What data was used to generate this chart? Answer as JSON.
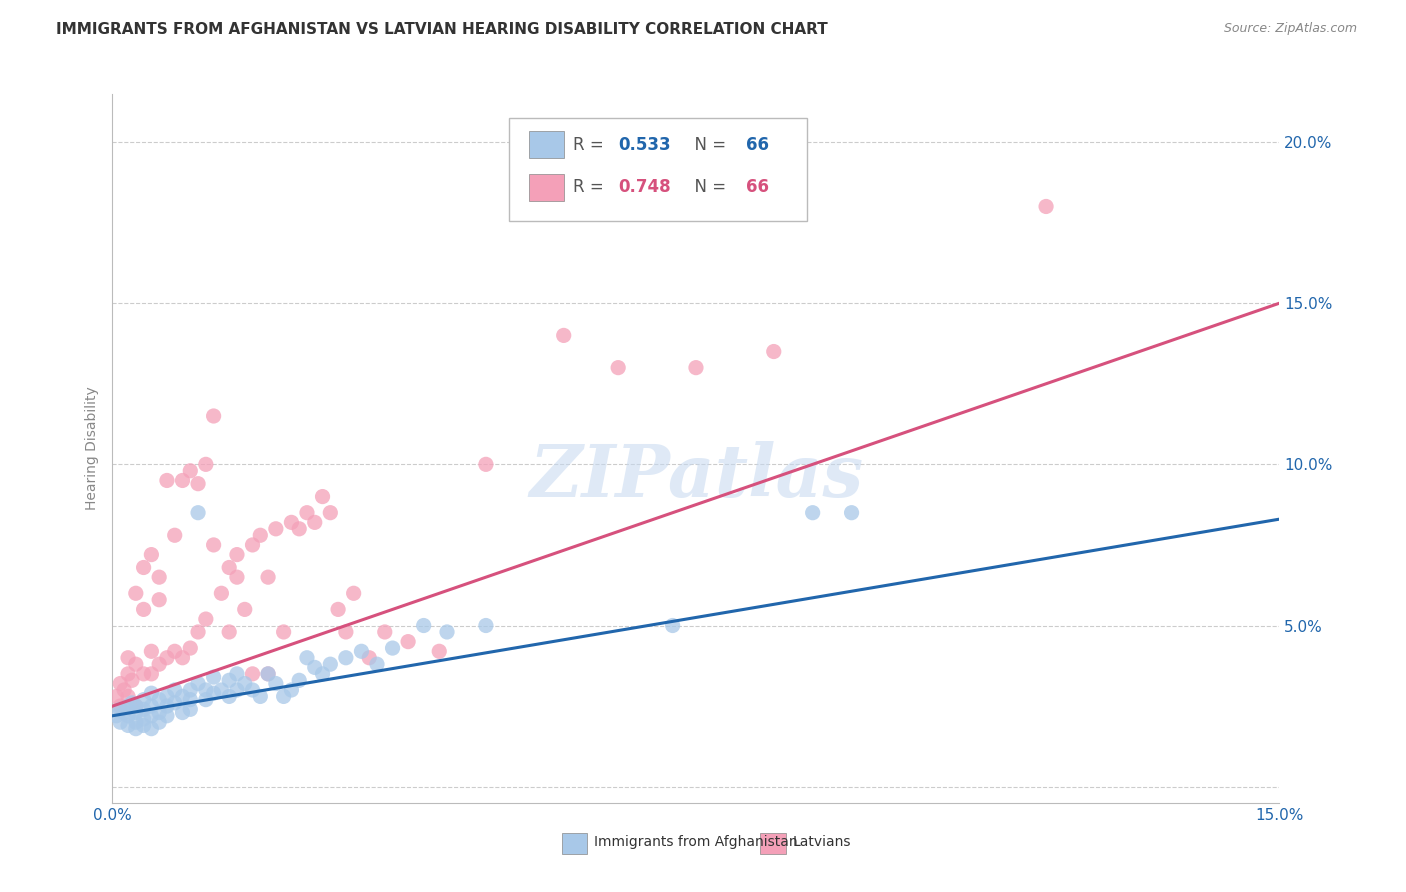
{
  "title": "IMMIGRANTS FROM AFGHANISTAN VS LATVIAN HEARING DISABILITY CORRELATION CHART",
  "source": "Source: ZipAtlas.com",
  "ylabel": "Hearing Disability",
  "watermark": "ZIPatlas",
  "legend_label1": "Immigrants from Afghanistan",
  "legend_label2": "Latvians",
  "color_blue": "#a8c8e8",
  "color_pink": "#f4a0b8",
  "line_color_blue": "#2166ac",
  "line_color_pink": "#d6517d",
  "xmin": 0.0,
  "xmax": 0.15,
  "ymin": -0.005,
  "ymax": 0.215,
  "xticks": [
    0.0,
    0.025,
    0.05,
    0.075,
    0.1,
    0.125,
    0.15
  ],
  "yticks": [
    0.0,
    0.05,
    0.1,
    0.15,
    0.2
  ],
  "background_color": "#ffffff",
  "grid_color": "#cccccc",
  "blue_line_x": [
    0.0,
    0.15
  ],
  "blue_line_y": [
    0.022,
    0.083
  ],
  "pink_line_x": [
    0.0,
    0.15
  ],
  "pink_line_y": [
    0.025,
    0.15
  ],
  "blue_scatter_x": [
    0.0005,
    0.001,
    0.001,
    0.0015,
    0.002,
    0.002,
    0.002,
    0.0025,
    0.003,
    0.003,
    0.003,
    0.003,
    0.004,
    0.004,
    0.004,
    0.004,
    0.005,
    0.005,
    0.005,
    0.005,
    0.006,
    0.006,
    0.006,
    0.007,
    0.007,
    0.007,
    0.008,
    0.008,
    0.009,
    0.009,
    0.01,
    0.01,
    0.01,
    0.011,
    0.011,
    0.012,
    0.012,
    0.013,
    0.013,
    0.014,
    0.015,
    0.015,
    0.016,
    0.016,
    0.017,
    0.018,
    0.019,
    0.02,
    0.021,
    0.022,
    0.023,
    0.024,
    0.025,
    0.026,
    0.027,
    0.028,
    0.03,
    0.032,
    0.034,
    0.036,
    0.04,
    0.043,
    0.048,
    0.072,
    0.09,
    0.095
  ],
  "blue_scatter_y": [
    0.022,
    0.024,
    0.02,
    0.023,
    0.025,
    0.022,
    0.019,
    0.026,
    0.023,
    0.02,
    0.018,
    0.025,
    0.024,
    0.021,
    0.027,
    0.019,
    0.025,
    0.022,
    0.029,
    0.018,
    0.027,
    0.023,
    0.02,
    0.028,
    0.025,
    0.022,
    0.03,
    0.026,
    0.028,
    0.023,
    0.03,
    0.027,
    0.024,
    0.085,
    0.032,
    0.03,
    0.027,
    0.034,
    0.029,
    0.03,
    0.033,
    0.028,
    0.035,
    0.03,
    0.032,
    0.03,
    0.028,
    0.035,
    0.032,
    0.028,
    0.03,
    0.033,
    0.04,
    0.037,
    0.035,
    0.038,
    0.04,
    0.042,
    0.038,
    0.043,
    0.05,
    0.048,
    0.05,
    0.05,
    0.085,
    0.085
  ],
  "pink_scatter_x": [
    0.0005,
    0.001,
    0.001,
    0.0015,
    0.002,
    0.002,
    0.002,
    0.0025,
    0.003,
    0.003,
    0.003,
    0.004,
    0.004,
    0.004,
    0.005,
    0.005,
    0.005,
    0.006,
    0.006,
    0.006,
    0.007,
    0.007,
    0.008,
    0.008,
    0.009,
    0.009,
    0.01,
    0.01,
    0.011,
    0.011,
    0.012,
    0.012,
    0.013,
    0.013,
    0.014,
    0.015,
    0.015,
    0.016,
    0.016,
    0.017,
    0.018,
    0.018,
    0.019,
    0.02,
    0.02,
    0.021,
    0.022,
    0.023,
    0.024,
    0.025,
    0.026,
    0.027,
    0.028,
    0.029,
    0.03,
    0.031,
    0.033,
    0.035,
    0.038,
    0.042,
    0.048,
    0.058,
    0.065,
    0.075,
    0.085,
    0.12
  ],
  "pink_scatter_y": [
    0.028,
    0.032,
    0.025,
    0.03,
    0.035,
    0.028,
    0.04,
    0.033,
    0.038,
    0.025,
    0.06,
    0.055,
    0.035,
    0.068,
    0.042,
    0.035,
    0.072,
    0.038,
    0.058,
    0.065,
    0.04,
    0.095,
    0.042,
    0.078,
    0.095,
    0.04,
    0.043,
    0.098,
    0.048,
    0.094,
    0.052,
    0.1,
    0.075,
    0.115,
    0.06,
    0.068,
    0.048,
    0.072,
    0.065,
    0.055,
    0.075,
    0.035,
    0.078,
    0.065,
    0.035,
    0.08,
    0.048,
    0.082,
    0.08,
    0.085,
    0.082,
    0.09,
    0.085,
    0.055,
    0.048,
    0.06,
    0.04,
    0.048,
    0.045,
    0.042,
    0.1,
    0.14,
    0.13,
    0.13,
    0.135,
    0.18
  ]
}
